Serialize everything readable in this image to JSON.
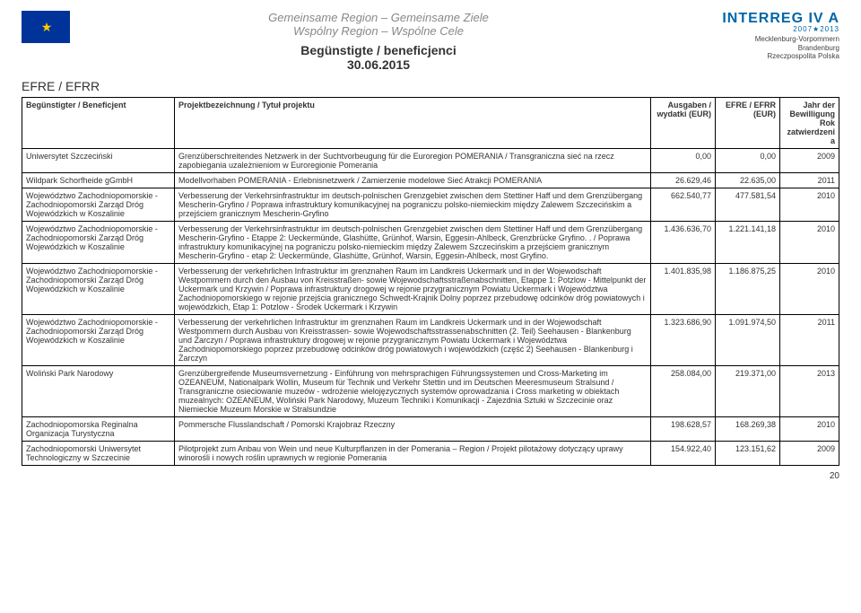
{
  "header": {
    "slogan_de": "Gemeinsame Region – Gemeinsame Ziele",
    "slogan_pl": "Wspólny Region – Wspólne Cele",
    "title": "Begünstigte / beneficjenci",
    "date": "30.06.2015",
    "efre_label": "EFRE / EFRR",
    "interreg": {
      "brand": "INTERREG IV A",
      "years": "2007★2013",
      "region1": "Mecklenburg-Vorpommern",
      "region2": "Brandenburg",
      "region3": "Rzeczpospolita Polska"
    }
  },
  "columns": {
    "c0": "Begünstigter / Beneficjent",
    "c1": "Projektbezeichnung / Tytuł projektu",
    "c2": "Ausgaben / wydatki (EUR)",
    "c3": "EFRE / EFRR (EUR)",
    "c4": "Jahr der Bewilligung Rok zatwierdzenia"
  },
  "rows": [
    {
      "b": "Uniwersytet Szczeciński",
      "p": "Grenzüberschreitendes Netzwerk in der Suchtvorbeugung für die Euroregion POMERANIA / Transgraniczna sieć na rzecz zapobiegania uzależnieniom w Euroregionie Pomerania",
      "a": "0,00",
      "e": "0,00",
      "y": "2009"
    },
    {
      "b": "Wildpark Schorfheide gGmbH",
      "p": "Modellvorhaben POMERANIA - Erlebnisnetzwerk / Zamierzenie modelowe Sieć Atrakcji POMERANIA",
      "a": "26.629,46",
      "e": "22.635,00",
      "y": "2011"
    },
    {
      "b": "Województwo Zachodniopomorskie - Zachodniopomorski Zarząd Dróg Wojewódzkich w Koszalinie",
      "p": "Verbesserung der Verkehrsinfrastruktur im deutsch-polnischen Grenzgebiet zwischen dem Stettiner Haff und dem Grenzübergang Mescherin-Gryfino / Poprawa infrastruktury komunikacyjnej na pograniczu polsko-niemieckim między Zalewem Szczecińskim a przejściem granicznym Mescherin-Gryfino",
      "a": "662.540,77",
      "e": "477.581,54",
      "y": "2010"
    },
    {
      "b": "Województwo Zachodniopomorskie - Zachodniopomorski Zarząd Dróg Wojewódzkich w Koszalinie",
      "p": "Verbesserung der Verkehrsinfrastruktur im deutsch-polnischen Grenzgebiet zwischen dem Stettiner Haff und dem Grenzübergang Mescherin-Gryfino - Etappe 2: Ueckermünde, Glashütte, Grünhof, Warsin, Eggesin-Ahlbeck, Grenzbrücke Gryfino. . / Poprawa infrastruktury komunikacyjnej na pograniczu polsko-niemieckim między Zalewem Szczecińskim a przejściem granicznym Mescherin-Gryfino - etap 2: Ueckermünde, Glashütte, Grünhof, Warsin, Eggesin-Ahlbeck, most Gryfino.",
      "a": "1.436.636,70",
      "e": "1.221.141,18",
      "y": "2010"
    },
    {
      "b": "Województwo Zachodniopomorskie - Zachodniopomorski Zarząd Dróg Wojewódzkich w Koszalinie",
      "p": "Verbesserung der verkehrlichen Infrastruktur im grenznahen Raum im Landkreis Uckermark und in der Wojewodschaft Westpommern durch den Ausbau von Kreisstraßen- sowie Wojewodschaftsstraßenabschnitten, Etappe 1: Potzlow - Mittelpunkt der Uckermark und Krzywin / Poprawa infrastruktury drogowej w rejonie przygranicznym Powiatu Uckermark i Województwa Zachodniopomorskiego w rejonie przejścia granicznego Schwedt-Krajnik Dolny poprzez przebudowę odcinków dróg powiatowych i wojewódzkich, Etap 1: Potzlow - Środek Uckermark i Krzywin",
      "a": "1.401.835,98",
      "e": "1.186.875,25",
      "y": "2010"
    },
    {
      "b": "Województwo Zachodniopomorskie - Zachodniopomorski Zarząd Dróg Wojewódzkich w Koszalinie",
      "p": "Verbesserung der verkehrlichen Infrastruktur im grenznahen Raum im Landkreis Uckermark und in der Wojewodschaft Westpommern durch Ausbau von Kreisstrassen- sowie Wojewodschaftsstrassenabschnitten (2. Teil) Seehausen - Blankenburg und Żarczyn / Poprawa infrastruktury drogowej w rejonie przygranicznym Powiatu Uckermark i Województwa Zachodniopomorskiego poprzez przebudowę odcinków dróg powiatowych i wojewódzkich (część 2) Seehausen - Blankenburg i Żarczyn",
      "a": "1.323.686,90",
      "e": "1.091.974,50",
      "y": "2011"
    },
    {
      "b": "Woliński Park Narodowy",
      "p": "Grenzübergreifende Museumsvernetzung - Einführung von mehrsprachigen Führungssystemen und Cross-Marketing im OZEANEUM, Nationalpark Wollin, Museum für Technik und Verkehr Stettin und im Deutschen Meeresmuseum Stralsund / Transgraniczne osieciowanie muzeów - wdrożenie wielojęzycznych systemów oprowadzania i Cross marketing w obiektach muzealnych: OZEANEUM, Woliński Park Narodowy, Muzeum Techniki i Komunikacji - Zajezdnia Sztuki w Szczecinie oraz Niemieckie Muzeum Morskie w Stralsundzie",
      "a": "258.084,00",
      "e": "219.371,00",
      "y": "2013"
    },
    {
      "b": "Zachodniopomorska Reginalna Organizacja Turystyczna",
      "p": "Pommersche Flusslandschaft / Pomorski Krajobraz Rzeczny",
      "a": "198.628,57",
      "e": "168.269,38",
      "y": "2010"
    },
    {
      "b": "Zachodniopomorski Uniwersytet Technologiczny w Szczecinie",
      "p": "Pilotprojekt zum Anbau von Wein und neue Kulturpflanzen in der Pomerania – Region / Projekt pilotażowy dotyczący uprawy winorośli i nowych roślin uprawnych w regionie Pomerania",
      "a": "154.922,40",
      "e": "123.151,62",
      "y": "2009"
    }
  ],
  "page_number": "20"
}
